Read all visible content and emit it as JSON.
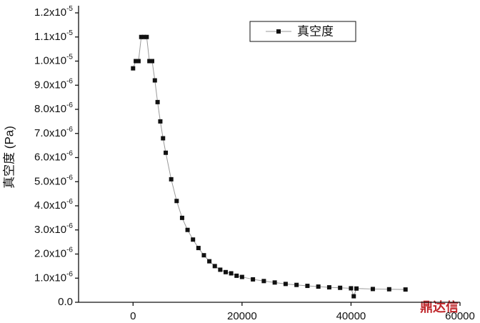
{
  "chart_data": {
    "type": "line",
    "y_label": "真空度 (Pa)",
    "watermark": "鼎达信",
    "legend": "top-right",
    "grid": false,
    "series": [
      {
        "name": "真空度",
        "color": "#111111",
        "line_color": "#999999",
        "x": [
          0,
          500,
          1000,
          1500,
          2000,
          2500,
          3000,
          3500,
          4000,
          4500,
          5000,
          5500,
          6000,
          7000,
          8000,
          9000,
          10000,
          11000,
          12000,
          13000,
          14000,
          15000,
          16000,
          17000,
          18000,
          19000,
          20000,
          22000,
          24000,
          26000,
          28000,
          30000,
          32000,
          34000,
          36000,
          38000,
          40000,
          40500,
          41000,
          44000,
          47000,
          50000
        ],
        "values": [
          9.7e-06,
          1e-05,
          1e-05,
          1.1e-05,
          1.1e-05,
          1.1e-05,
          1e-05,
          1e-05,
          9.2e-06,
          8.3e-06,
          7.5e-06,
          6.8e-06,
          6.2e-06,
          5.1e-06,
          4.2e-06,
          3.5e-06,
          3e-06,
          2.6e-06,
          2.25e-06,
          1.95e-06,
          1.7e-06,
          1.5e-06,
          1.35e-06,
          1.25e-06,
          1.2e-06,
          1.1e-06,
          1.05e-06,
          9.5e-07,
          8.8e-07,
          8.2e-07,
          7.6e-07,
          7.2e-07,
          6.8e-07,
          6.5e-07,
          6.2e-07,
          6e-07,
          5.8e-07,
          2.5e-07,
          5.7e-07,
          5.5e-07,
          5.4e-07,
          5.3e-07
        ]
      }
    ],
    "xlim": [
      -10000,
      60000
    ],
    "xticks": [
      0,
      20000,
      40000,
      60000
    ],
    "ylim": [
      0,
      1.2e-05
    ],
    "yticks": [
      {
        "value": 0,
        "label": "0.0"
      },
      {
        "value": 1e-06,
        "label": "1.0x10-6"
      },
      {
        "value": 2e-06,
        "label": "2.0x10-6"
      },
      {
        "value": 3e-06,
        "label": "3.0x10-6"
      },
      {
        "value": 4e-06,
        "label": "4.0x10-6"
      },
      {
        "value": 5e-06,
        "label": "5.0x10-6"
      },
      {
        "value": 6e-06,
        "label": "6.0x10-6"
      },
      {
        "value": 7e-06,
        "label": "7.0x10-6"
      },
      {
        "value": 8e-06,
        "label": "8.0x10-6"
      },
      {
        "value": 9e-06,
        "label": "9.0x10-6"
      },
      {
        "value": 1e-05,
        "label": "1.0x10-5"
      },
      {
        "value": 1.1e-05,
        "label": "1.1x10-5"
      },
      {
        "value": 1.2e-05,
        "label": "1.2x10-5"
      }
    ]
  }
}
